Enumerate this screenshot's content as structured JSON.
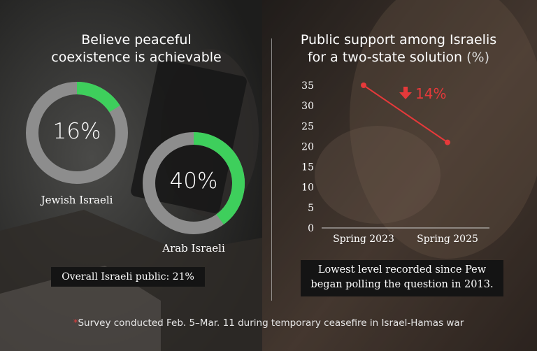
{
  "colors": {
    "donut_fill": "#3ecf5c",
    "donut_track": "#8d8d8d",
    "trend_line": "#e6393a",
    "axis_text": "#ffffff"
  },
  "left_panel": {
    "title_line1": "Believe peaceful",
    "title_line2": "coexistence is achievable",
    "overall_note": "Overall Israeli public: 21%"
  },
  "right_panel": {
    "title_line1": "Public support among Israelis",
    "title_line2": "for a two-state solution",
    "title_unit": "(%)",
    "callout": "14%",
    "note_line1": "Lowest level recorded since Pew",
    "note_line2": "began polling the question in 2013."
  },
  "footnote": {
    "star": "*",
    "text": "Survey conducted Feb. 5–Mar. 11 during temporary ceasefire in Israel-Hamas war"
  },
  "chart_data": [
    {
      "type": "pie",
      "title": "Believe peaceful coexistence is achievable",
      "slices": [
        {
          "name": "Jewish Israeli",
          "value": 16,
          "label": "16%"
        },
        {
          "name": "Arab Israeli",
          "value": 40,
          "label": "40%"
        }
      ]
    },
    {
      "type": "line",
      "title": "Public support among Israelis for a two-state solution (%)",
      "categories": [
        "Spring 2023",
        "Spring 2025"
      ],
      "values": [
        35,
        21
      ],
      "ylim": [
        0,
        35
      ],
      "yticks": [
        "0",
        "5",
        "10",
        "15",
        "20",
        "25",
        "30",
        "35"
      ],
      "change_label": "14%",
      "grid": false
    }
  ]
}
